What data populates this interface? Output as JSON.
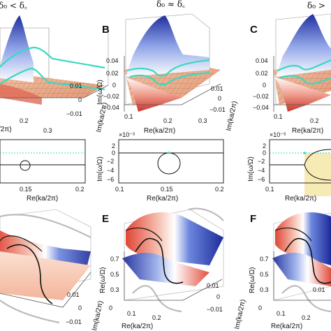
{
  "headers": {
    "left": "δ₀ < δ꜀",
    "middle": "δ₀ ≈ δ꜀",
    "right": "δ₀ >"
  },
  "panels": {
    "B": "B",
    "C": "C",
    "E": "E",
    "F": "F"
  },
  "top_left": {
    "x_label": "/2π)",
    "x_ticks": [
      "0.2",
      "0.3"
    ],
    "y_label": "Im(ka/2π)",
    "y_ticks": [
      "0.01",
      "0",
      "−0.01"
    ]
  },
  "top_mid": {
    "z_label": "Im(ω/Ω)",
    "z_ticks": [
      "0.04",
      "0.02",
      "0",
      "−0.02",
      "−0.04"
    ],
    "x_label": "Re(ka/2π)",
    "x_ticks": [
      "0.1",
      "0.2",
      "0.3"
    ],
    "y_label": "Im(ka/2π)",
    "y_ticks": [
      "0.01",
      "0",
      "−0.01"
    ]
  },
  "top_right": {
    "z_ticks": [
      "0.04",
      "0.02",
      "0",
      "−0.02",
      "−0.04"
    ],
    "x_label": "Re(ka/2π)",
    "x_ticks": [
      "0.1",
      "0.2",
      "0.3"
    ]
  },
  "mid_left": {
    "x_label": "Re(ka/2π)",
    "x_ticks": [
      "0.15",
      "0.2"
    ]
  },
  "mid_mid": {
    "scale": "×10⁻³",
    "y_label": "Im(ω/Ω)",
    "y_ticks": [
      "2",
      "0",
      "−2",
      "−4",
      "−6"
    ],
    "x_label": "Re(ka/2π)",
    "x_ticks": [
      "0.1",
      "0.15",
      "0.2"
    ]
  },
  "mid_right": {
    "scale": "×10⁻³",
    "y_label": "Im(ω/Ω)",
    "y_ticks": [
      "2",
      "0",
      "−2",
      "−4",
      "−6"
    ],
    "x_label": "Re(ka/2π)",
    "x_ticks": [
      "0.1"
    ]
  },
  "bot_left": {
    "y_label": "Im(ka/2π)",
    "y_ticks": [
      "0.01",
      "0",
      "−0.01"
    ]
  },
  "bot_mid": {
    "z_label": "Re(ω/Ω)",
    "z_ticks": [
      "0.7",
      "0.5",
      "0.3"
    ],
    "x_label": "Re(ka/2π)",
    "x_ticks": [
      "0",
      "0.1",
      "0.2"
    ],
    "y_label": "Im(ka/2π)",
    "y_ticks": [
      "0.01",
      "0",
      "−0.01"
    ]
  },
  "bot_right": {
    "z_label": "Re(ω/Ω)",
    "z_ticks": [
      "0.7",
      "0.5",
      "0.3"
    ],
    "x_label": "Re(ka/2π)",
    "x_ticks": [
      "0",
      "0.1",
      "0.2"
    ],
    "y_label": "Im(ka/2π)",
    "y_ticks": [
      "0.01"
    ]
  },
  "colors": {
    "surface_blue": "#2a3fb8",
    "surface_red": "#d9453a",
    "grid_plane": "#e9a57f",
    "highlight": "#39d9c0",
    "shade": "#f6e7a8"
  }
}
